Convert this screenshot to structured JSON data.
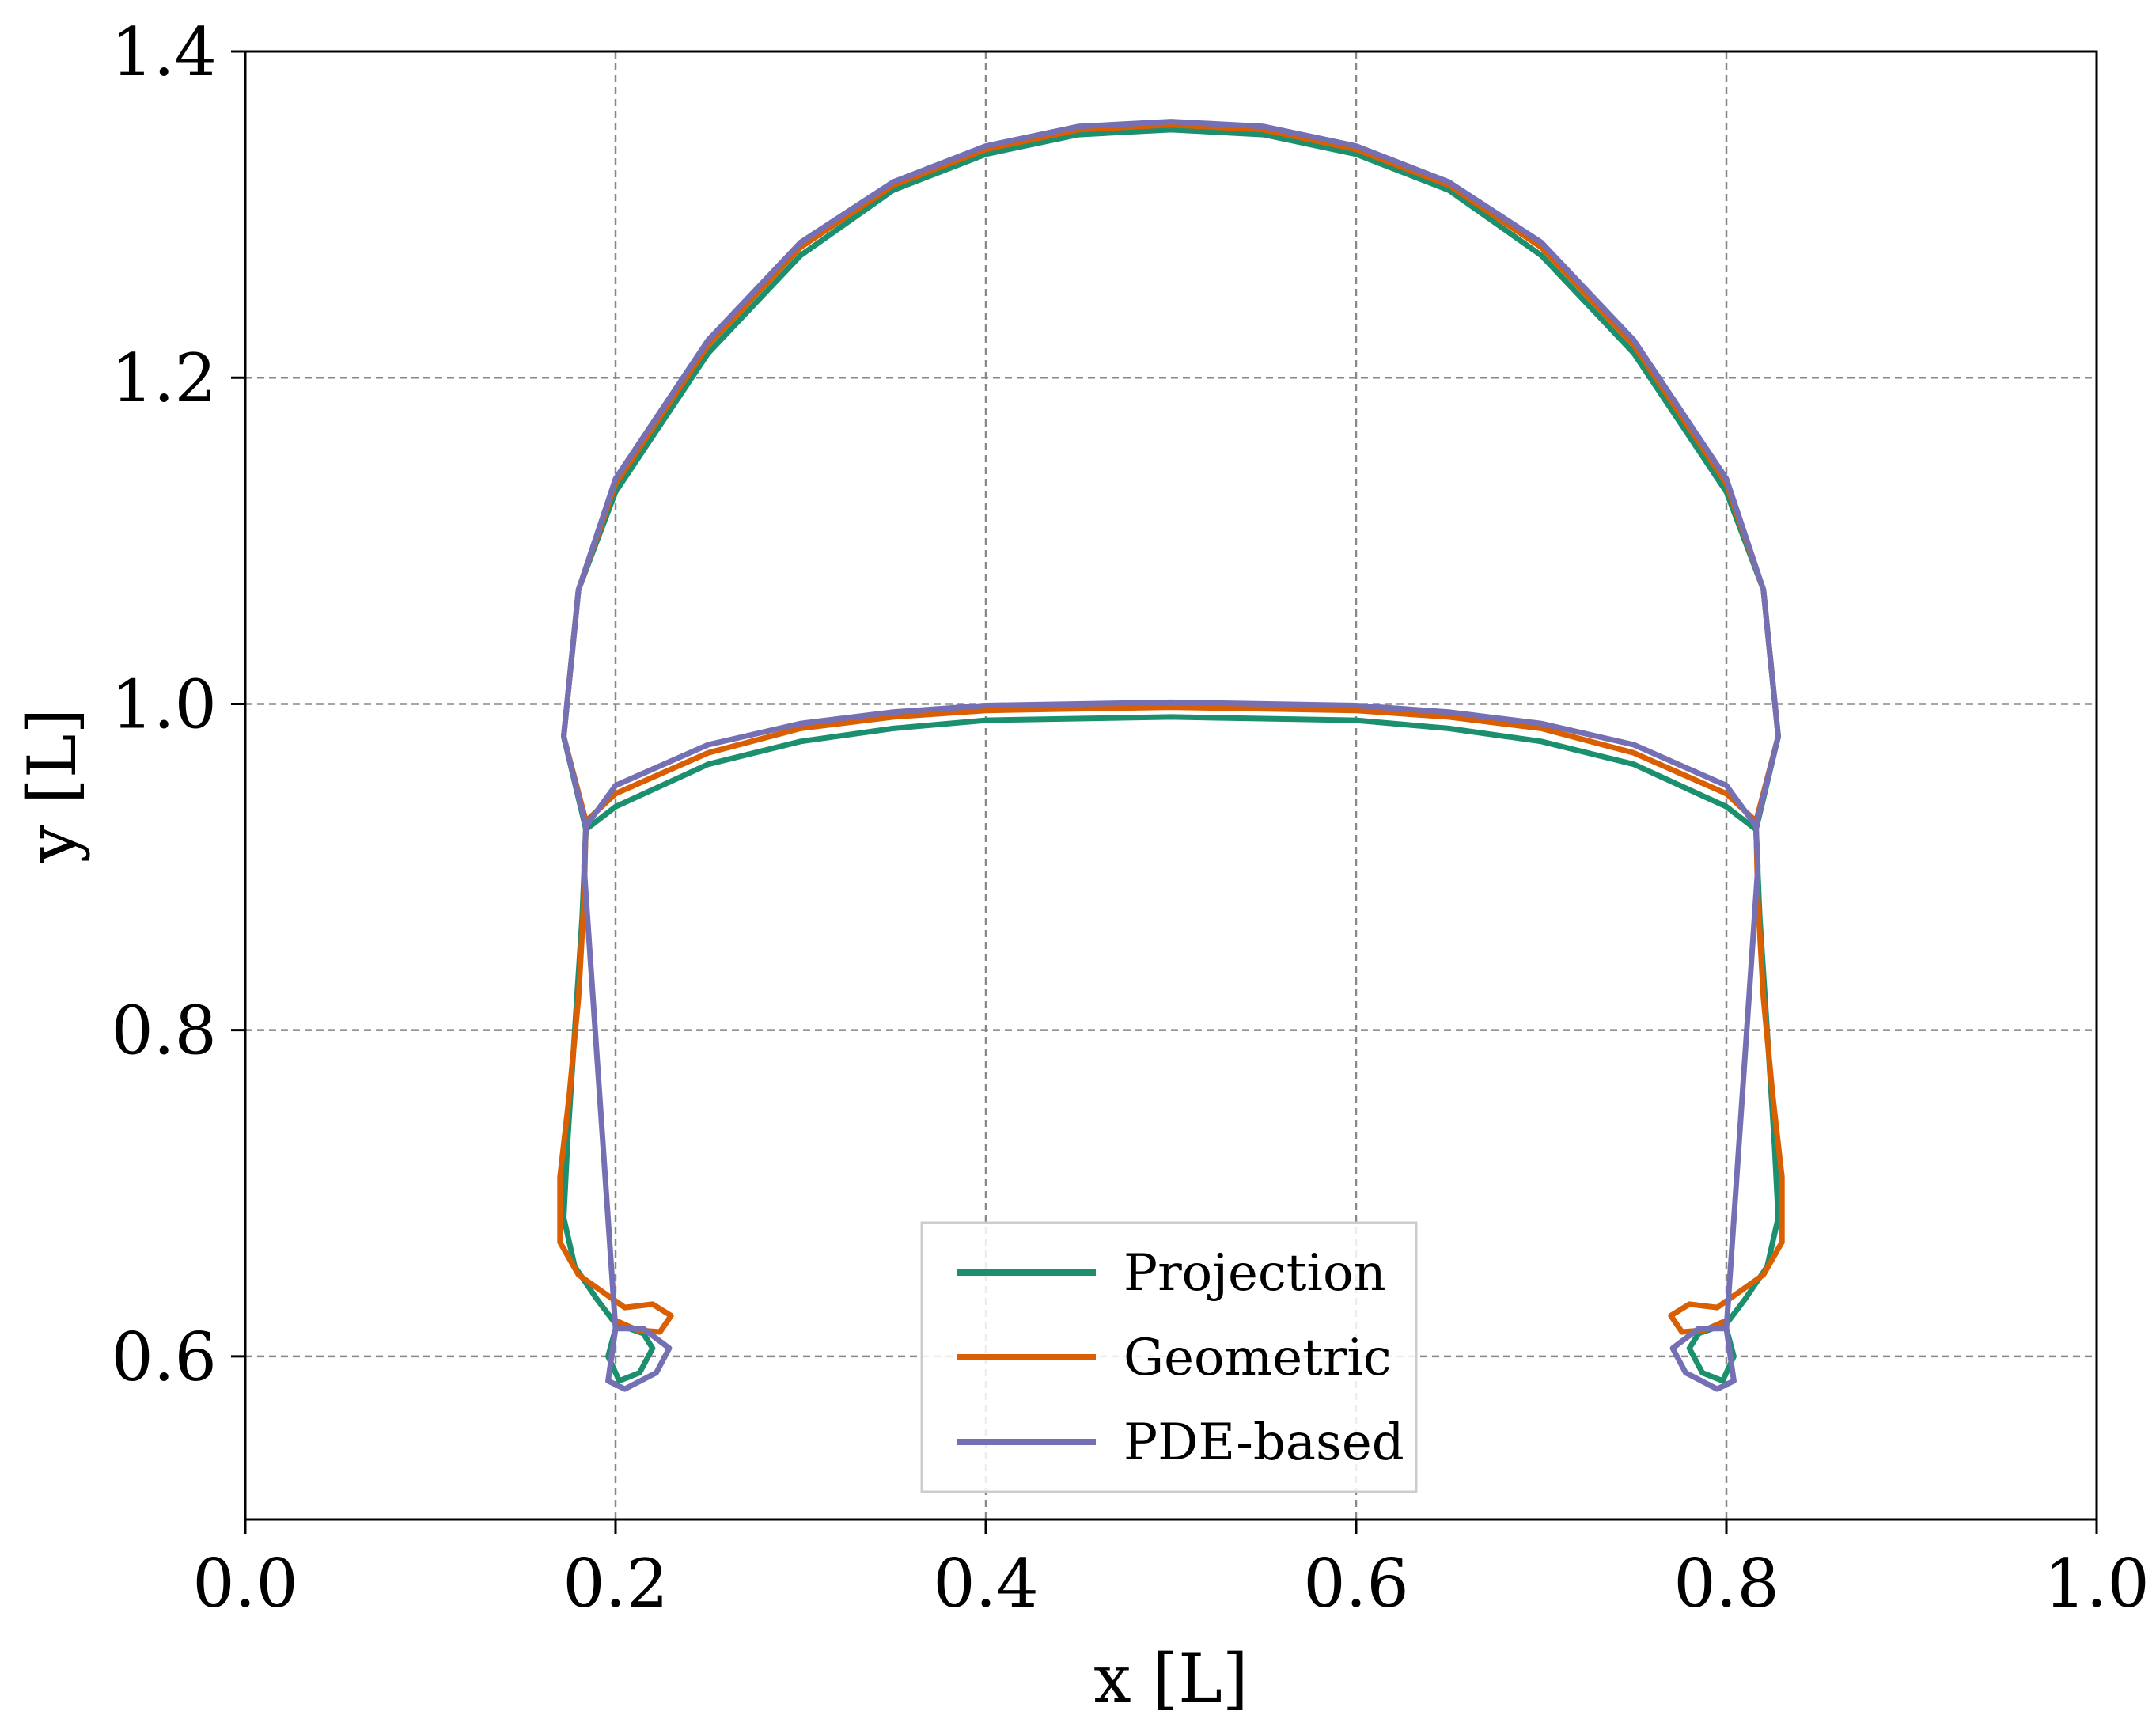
{
  "chart_data": {
    "type": "line",
    "xlabel": "x [L]",
    "ylabel": "y [L]",
    "xlim": [
      0.0,
      1.0
    ],
    "ylim": [
      0.5,
      1.4
    ],
    "xticks": [
      "0.0",
      "0.2",
      "0.4",
      "0.6",
      "0.8",
      "1.0"
    ],
    "yticks": [
      "0.6",
      "0.8",
      "1.0",
      "1.2",
      "1.4"
    ],
    "xtick_values": [
      0.0,
      0.2,
      0.4,
      0.6,
      0.8,
      1.0
    ],
    "ytick_values": [
      0.6,
      0.8,
      1.0,
      1.2,
      1.4
    ],
    "grid": true,
    "legend_position": "bottom-center",
    "series": [
      {
        "name": "Projection",
        "color": "#1b8f6e",
        "symmetric_about_x": 0.5,
        "outer_dome": [
          [
            0.172,
            0.98
          ],
          [
            0.18,
            1.07
          ],
          [
            0.2,
            1.13
          ],
          [
            0.25,
            1.215
          ],
          [
            0.3,
            1.275
          ],
          [
            0.35,
            1.315
          ],
          [
            0.4,
            1.337
          ],
          [
            0.45,
            1.349
          ],
          [
            0.5,
            1.352
          ]
        ],
        "inner_arc": [
          [
            0.184,
            0.923
          ],
          [
            0.2,
            0.937
          ],
          [
            0.25,
            0.963
          ],
          [
            0.3,
            0.977
          ],
          [
            0.35,
            0.985
          ],
          [
            0.4,
            0.99
          ],
          [
            0.5,
            0.992
          ]
        ],
        "stem": [
          [
            0.184,
            0.923
          ],
          [
            0.182,
            0.87
          ],
          [
            0.178,
            0.8
          ],
          [
            0.174,
            0.73
          ],
          [
            0.172,
            0.685
          ],
          [
            0.178,
            0.655
          ],
          [
            0.19,
            0.635
          ],
          [
            0.2,
            0.62
          ],
          [
            0.215,
            0.614
          ],
          [
            0.22,
            0.605
          ],
          [
            0.213,
            0.59
          ],
          [
            0.202,
            0.585
          ],
          [
            0.196,
            0.6
          ],
          [
            0.2,
            0.617
          ]
        ]
      },
      {
        "name": "Geometric",
        "color": "#d95f02",
        "symmetric_about_x": 0.5,
        "outer_dome": [
          [
            0.172,
            0.98
          ],
          [
            0.18,
            1.07
          ],
          [
            0.2,
            1.135
          ],
          [
            0.25,
            1.22
          ],
          [
            0.3,
            1.28
          ],
          [
            0.35,
            1.318
          ],
          [
            0.4,
            1.34
          ],
          [
            0.45,
            1.352
          ],
          [
            0.5,
            1.355
          ]
        ],
        "inner_arc": [
          [
            0.184,
            0.928
          ],
          [
            0.2,
            0.945
          ],
          [
            0.25,
            0.97
          ],
          [
            0.3,
            0.985
          ],
          [
            0.35,
            0.992
          ],
          [
            0.4,
            0.996
          ],
          [
            0.5,
            0.998
          ]
        ],
        "stem": [
          [
            0.184,
            0.928
          ],
          [
            0.183,
            0.88
          ],
          [
            0.18,
            0.82
          ],
          [
            0.175,
            0.76
          ],
          [
            0.17,
            0.71
          ],
          [
            0.17,
            0.67
          ],
          [
            0.18,
            0.65
          ],
          [
            0.195,
            0.638
          ],
          [
            0.205,
            0.63
          ],
          [
            0.22,
            0.632
          ],
          [
            0.23,
            0.625
          ],
          [
            0.224,
            0.615
          ],
          [
            0.212,
            0.616
          ],
          [
            0.2,
            0.622
          ]
        ]
      },
      {
        "name": "PDE-based",
        "color": "#7570b3",
        "symmetric_about_x": 0.5,
        "outer_dome": [
          [
            0.172,
            0.98
          ],
          [
            0.18,
            1.07
          ],
          [
            0.2,
            1.138
          ],
          [
            0.25,
            1.223
          ],
          [
            0.3,
            1.283
          ],
          [
            0.35,
            1.32
          ],
          [
            0.4,
            1.342
          ],
          [
            0.45,
            1.354
          ],
          [
            0.5,
            1.357
          ]
        ],
        "inner_arc": [
          [
            0.184,
            0.925
          ],
          [
            0.2,
            0.95
          ],
          [
            0.25,
            0.975
          ],
          [
            0.3,
            0.988
          ],
          [
            0.35,
            0.995
          ],
          [
            0.4,
            0.999
          ],
          [
            0.5,
            1.001
          ]
        ],
        "stem": [
          [
            0.184,
            0.925
          ],
          [
            0.183,
            0.9
          ],
          [
            0.2,
            0.617
          ],
          [
            0.215,
            0.617
          ],
          [
            0.229,
            0.605
          ],
          [
            0.222,
            0.59
          ],
          [
            0.205,
            0.58
          ],
          [
            0.196,
            0.585
          ],
          [
            0.2,
            0.617
          ]
        ]
      }
    ]
  }
}
